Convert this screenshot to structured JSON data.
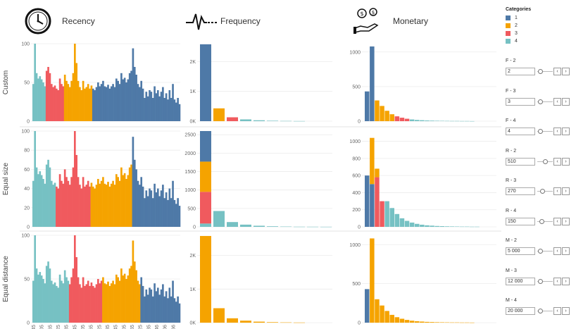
{
  "header": {
    "recency_title": "Recency",
    "frequency_title": "Frequency",
    "monetary_title": "Monetary",
    "recency_icon": "clock-icon",
    "frequency_icon": "heartbeat-icon",
    "monetary_icon": "money-hand-icon"
  },
  "rows": [
    "Custom",
    "Equal size",
    "Equal distance"
  ],
  "legend": {
    "title": "Categories",
    "items": [
      {
        "label": "1",
        "color": "#4e79a7"
      },
      {
        "label": "2",
        "color": "#f5a300"
      },
      {
        "label": "3",
        "color": "#f05a5e"
      },
      {
        "label": "4",
        "color": "#76c1c3"
      }
    ]
  },
  "parameters": [
    {
      "label": "F - 2",
      "value": "2",
      "slider": 0.05
    },
    {
      "label": "F - 3",
      "value": "3",
      "slider": 0.05
    },
    {
      "label": "F - 4",
      "value": "4",
      "slider": 0.05
    },
    {
      "label": "R - 2",
      "value": "510",
      "slider": 0.45
    },
    {
      "label": "R - 3",
      "value": "270",
      "slider": 0.25
    },
    {
      "label": "R - 4",
      "value": "150",
      "slider": 0.15
    },
    {
      "label": "M - 2",
      "value": "5 000",
      "slider": 0.05
    },
    {
      "label": "M - 3",
      "value": "12 000",
      "slider": 0.05
    },
    {
      "label": "M - 4",
      "value": "20 000",
      "slider": 0.05
    }
  ],
  "chart_data": [
    {
      "type": "bar",
      "name": "recency-custom",
      "ylim": [
        0,
        100
      ],
      "yticks": [
        {
          "v": 0,
          "l": "0"
        },
        {
          "v": 50,
          "l": "50"
        },
        {
          "v": 100,
          "l": "100"
        }
      ],
      "values": [
        48,
        100,
        62,
        55,
        58,
        54,
        50,
        45,
        65,
        70,
        62,
        48,
        44,
        46,
        42,
        40,
        55,
        48,
        45,
        60,
        52,
        48,
        44,
        52,
        62,
        100,
        75,
        52,
        44,
        40,
        52,
        42,
        44,
        48,
        42,
        46,
        42,
        40,
        44,
        50,
        45,
        48,
        52,
        45,
        44,
        47,
        42,
        45,
        48,
        44,
        55,
        52,
        48,
        62,
        54,
        56,
        50,
        54,
        62,
        65,
        94,
        70,
        60,
        48,
        44,
        52,
        42,
        30,
        38,
        32,
        40,
        38,
        30,
        45,
        36,
        40,
        32,
        38,
        44,
        30,
        36,
        28,
        40,
        30,
        48,
        28,
        24,
        30,
        22
      ],
      "cats": [
        4,
        4,
        4,
        4,
        4,
        4,
        4,
        4,
        3,
        3,
        3,
        3,
        3,
        3,
        3,
        3,
        3,
        3,
        3,
        2,
        2,
        2,
        2,
        2,
        2,
        2,
        2,
        2,
        2,
        2,
        2,
        2,
        2,
        2,
        2,
        2,
        1,
        1,
        1,
        1,
        1,
        1,
        1,
        1,
        1,
        1,
        1,
        1,
        1,
        1,
        1,
        1,
        1,
        1,
        1,
        1,
        1,
        1,
        1,
        1,
        1,
        1,
        1,
        1,
        1,
        1,
        1,
        1,
        1,
        1,
        1,
        1,
        1,
        1,
        1,
        1,
        1,
        1,
        1,
        1,
        1,
        1,
        1,
        1,
        1,
        1,
        1,
        1,
        1
      ]
    },
    {
      "type": "bar",
      "name": "recency-equal-size",
      "ylim": [
        0,
        100
      ],
      "yticks": [
        {
          "v": 0,
          "l": "0"
        },
        {
          "v": 20,
          "l": "20"
        },
        {
          "v": 40,
          "l": "40"
        },
        {
          "v": 60,
          "l": "60"
        },
        {
          "v": 80,
          "l": "80"
        },
        {
          "v": 100,
          "l": "100"
        }
      ],
      "values": [
        48,
        100,
        62,
        55,
        58,
        54,
        50,
        45,
        65,
        70,
        62,
        48,
        44,
        46,
        42,
        40,
        55,
        48,
        45,
        60,
        52,
        48,
        44,
        52,
        62,
        100,
        75,
        52,
        44,
        40,
        52,
        42,
        44,
        48,
        42,
        46,
        42,
        40,
        44,
        50,
        45,
        48,
        52,
        45,
        44,
        47,
        42,
        45,
        48,
        44,
        55,
        52,
        48,
        62,
        54,
        56,
        50,
        54,
        62,
        65,
        94,
        70,
        60,
        48,
        44,
        52,
        42,
        30,
        38,
        32,
        40,
        38,
        30,
        45,
        36,
        40,
        32,
        38,
        44,
        30,
        36,
        28,
        40,
        30,
        48,
        28,
        24,
        30,
        22
      ],
      "cats": [
        4,
        4,
        4,
        4,
        4,
        4,
        4,
        4,
        4,
        4,
        4,
        4,
        4,
        4,
        3,
        3,
        3,
        3,
        3,
        3,
        3,
        3,
        3,
        3,
        3,
        3,
        3,
        3,
        3,
        3,
        3,
        3,
        3,
        3,
        3,
        2,
        2,
        2,
        2,
        2,
        2,
        2,
        2,
        2,
        2,
        2,
        2,
        2,
        2,
        2,
        2,
        2,
        2,
        2,
        2,
        2,
        2,
        2,
        2,
        2,
        1,
        1,
        1,
        1,
        1,
        1,
        1,
        1,
        1,
        1,
        1,
        1,
        1,
        1,
        1,
        1,
        1,
        1,
        1,
        1,
        1,
        1,
        1,
        1,
        1,
        1,
        1,
        1,
        1
      ]
    },
    {
      "type": "bar",
      "name": "recency-equal-distance",
      "ylim": [
        0,
        100
      ],
      "yticks": [
        {
          "v": 0,
          "l": "0"
        },
        {
          "v": 50,
          "l": "50"
        },
        {
          "v": 100,
          "l": "100"
        }
      ],
      "xticks": [
        "45",
        "105",
        "165",
        "225",
        "285",
        "345",
        "405",
        "465",
        "525",
        "585",
        "645",
        "705",
        "765",
        "825",
        "885",
        "946",
        "1006",
        "1066"
      ],
      "values": [
        48,
        100,
        62,
        55,
        58,
        54,
        50,
        45,
        65,
        70,
        62,
        48,
        44,
        46,
        42,
        40,
        55,
        48,
        45,
        60,
        52,
        48,
        44,
        52,
        62,
        100,
        75,
        52,
        44,
        40,
        52,
        42,
        44,
        48,
        42,
        46,
        42,
        40,
        44,
        50,
        45,
        48,
        52,
        45,
        44,
        47,
        42,
        45,
        48,
        44,
        55,
        52,
        48,
        62,
        54,
        56,
        50,
        54,
        62,
        65,
        94,
        70,
        60,
        48,
        44,
        52,
        42,
        30,
        38,
        32,
        40,
        38,
        30,
        45,
        36,
        40,
        32,
        38,
        44,
        30,
        36,
        28,
        40,
        30,
        48,
        28,
        24,
        30,
        22
      ],
      "cats": [
        4,
        4,
        4,
        4,
        4,
        4,
        4,
        4,
        4,
        4,
        4,
        4,
        4,
        4,
        4,
        4,
        4,
        4,
        4,
        4,
        4,
        4,
        3,
        3,
        3,
        3,
        3,
        3,
        3,
        3,
        3,
        3,
        3,
        3,
        3,
        3,
        3,
        3,
        3,
        3,
        3,
        3,
        2,
        2,
        2,
        2,
        2,
        2,
        2,
        2,
        2,
        2,
        2,
        2,
        2,
        2,
        2,
        2,
        2,
        2,
        2,
        2,
        2,
        2,
        2,
        1,
        1,
        1,
        1,
        1,
        1,
        1,
        1,
        1,
        1,
        1,
        1,
        1,
        1,
        1,
        1,
        1,
        1,
        1,
        1,
        1,
        1,
        1,
        1
      ]
    },
    {
      "type": "bar",
      "name": "frequency-custom",
      "ylim": [
        0,
        2600
      ],
      "yticks": [
        {
          "v": 0,
          "l": "0K"
        },
        {
          "v": 1000,
          "l": "1K"
        },
        {
          "v": 2000,
          "l": "2K"
        }
      ],
      "stacks": [
        [
          {
            "c": 1,
            "v": 2580
          }
        ],
        [
          {
            "c": 2,
            "v": 430
          }
        ],
        [
          {
            "c": 3,
            "v": 130
          }
        ],
        [
          {
            "c": 4,
            "v": 60
          }
        ],
        [
          {
            "c": 4,
            "v": 30
          }
        ],
        [
          {
            "c": 4,
            "v": 15
          }
        ],
        [
          {
            "c": 4,
            "v": 8
          }
        ],
        [
          {
            "c": 4,
            "v": 4
          }
        ]
      ]
    },
    {
      "type": "bar",
      "name": "frequency-equal-size",
      "ylim": [
        0,
        2600
      ],
      "yticks": [
        {
          "v": 0,
          "l": "0"
        },
        {
          "v": 500,
          "l": "500"
        },
        {
          "v": 1000,
          "l": "1000"
        },
        {
          "v": 1500,
          "l": "1500"
        },
        {
          "v": 2000,
          "l": "2000"
        },
        {
          "v": 2500,
          "l": "2500"
        }
      ],
      "stacks": [
        [
          {
            "c": 4,
            "v": 90
          },
          {
            "c": 3,
            "v": 860
          },
          {
            "c": 2,
            "v": 820
          },
          {
            "c": 1,
            "v": 830
          }
        ],
        [
          {
            "c": 4,
            "v": 430
          }
        ],
        [
          {
            "c": 4,
            "v": 130
          }
        ],
        [
          {
            "c": 4,
            "v": 60
          }
        ],
        [
          {
            "c": 4,
            "v": 30
          }
        ],
        [
          {
            "c": 4,
            "v": 15
          }
        ],
        [
          {
            "c": 4,
            "v": 8
          }
        ],
        [
          {
            "c": 4,
            "v": 4
          }
        ],
        [
          {
            "c": 4,
            "v": 3
          }
        ],
        [
          {
            "c": 4,
            "v": 2
          }
        ]
      ]
    },
    {
      "type": "bar",
      "name": "frequency-equal-distance",
      "ylim": [
        0,
        2600
      ],
      "yticks": [
        {
          "v": 0,
          "l": "0K"
        },
        {
          "v": 1000,
          "l": "1K"
        },
        {
          "v": 2000,
          "l": "2K"
        }
      ],
      "stacks": [
        [
          {
            "c": 2,
            "v": 2580
          }
        ],
        [
          {
            "c": 2,
            "v": 430
          }
        ],
        [
          {
            "c": 2,
            "v": 130
          }
        ],
        [
          {
            "c": 2,
            "v": 60
          }
        ],
        [
          {
            "c": 2,
            "v": 30
          }
        ],
        [
          {
            "c": 2,
            "v": 15
          }
        ],
        [
          {
            "c": 2,
            "v": 8
          }
        ],
        [
          {
            "c": 2,
            "v": 4
          }
        ]
      ]
    },
    {
      "type": "bar",
      "name": "monetary-custom",
      "ylim": [
        0,
        1120
      ],
      "yticks": [
        {
          "v": 0,
          "l": "0"
        },
        {
          "v": 500,
          "l": "500"
        },
        {
          "v": 1000,
          "l": "1000"
        }
      ],
      "stacks": [
        [
          {
            "c": 1,
            "v": 430
          }
        ],
        [
          {
            "c": 1,
            "v": 1080
          }
        ],
        [
          {
            "c": 2,
            "v": 300
          }
        ],
        [
          {
            "c": 2,
            "v": 220
          }
        ],
        [
          {
            "c": 2,
            "v": 150
          }
        ],
        [
          {
            "c": 2,
            "v": 100
          }
        ],
        [
          {
            "c": 3,
            "v": 70
          }
        ],
        [
          {
            "c": 3,
            "v": 50
          }
        ],
        [
          {
            "c": 3,
            "v": 35
          }
        ],
        [
          {
            "c": 4,
            "v": 25
          }
        ],
        [
          {
            "c": 4,
            "v": 18
          }
        ],
        [
          {
            "c": 4,
            "v": 14
          }
        ],
        [
          {
            "c": 4,
            "v": 10
          }
        ],
        [
          {
            "c": 4,
            "v": 8
          }
        ],
        [
          {
            "c": 4,
            "v": 6
          }
        ],
        [
          {
            "c": 4,
            "v": 5
          }
        ],
        [
          {
            "c": 4,
            "v": 4
          }
        ],
        [
          {
            "c": 4,
            "v": 3
          }
        ],
        [
          {
            "c": 4,
            "v": 3
          }
        ],
        [
          {
            "c": 4,
            "v": 2
          }
        ],
        [
          {
            "c": 4,
            "v": 2
          }
        ],
        [
          {
            "c": 4,
            "v": 1
          }
        ]
      ]
    },
    {
      "type": "bar",
      "name": "monetary-equal-size",
      "ylim": [
        0,
        1120
      ],
      "yticks": [
        {
          "v": 0,
          "l": "0"
        },
        {
          "v": 200,
          "l": "200"
        },
        {
          "v": 400,
          "l": "400"
        },
        {
          "v": 600,
          "l": "600"
        },
        {
          "v": 800,
          "l": "800"
        },
        {
          "v": 1000,
          "l": "1000"
        }
      ],
      "stacks": [
        [
          {
            "c": 1,
            "v": 600
          }
        ],
        [
          {
            "c": 1,
            "v": 500
          },
          {
            "c": 2,
            "v": 540
          }
        ],
        [
          {
            "c": 3,
            "v": 580
          },
          {
            "c": 2,
            "v": 100
          }
        ],
        [
          {
            "c": 3,
            "v": 300
          }
        ],
        [
          {
            "c": 4,
            "v": 300
          }
        ],
        [
          {
            "c": 4,
            "v": 220
          }
        ],
        [
          {
            "c": 4,
            "v": 150
          }
        ],
        [
          {
            "c": 4,
            "v": 100
          }
        ],
        [
          {
            "c": 4,
            "v": 70
          }
        ],
        [
          {
            "c": 4,
            "v": 50
          }
        ],
        [
          {
            "c": 4,
            "v": 35
          }
        ],
        [
          {
            "c": 4,
            "v": 25
          }
        ],
        [
          {
            "c": 4,
            "v": 18
          }
        ],
        [
          {
            "c": 4,
            "v": 14
          }
        ],
        [
          {
            "c": 4,
            "v": 10
          }
        ],
        [
          {
            "c": 4,
            "v": 8
          }
        ],
        [
          {
            "c": 4,
            "v": 6
          }
        ],
        [
          {
            "c": 4,
            "v": 5
          }
        ],
        [
          {
            "c": 4,
            "v": 4
          }
        ],
        [
          {
            "c": 4,
            "v": 3
          }
        ],
        [
          {
            "c": 4,
            "v": 3
          }
        ],
        [
          {
            "c": 4,
            "v": 2
          }
        ],
        [
          {
            "c": 4,
            "v": 2
          }
        ]
      ]
    },
    {
      "type": "bar",
      "name": "monetary-equal-distance",
      "ylim": [
        0,
        1120
      ],
      "yticks": [
        {
          "v": 0,
          "l": "0"
        },
        {
          "v": 500,
          "l": "500"
        },
        {
          "v": 1000,
          "l": "1000"
        }
      ],
      "stacks": [
        [
          {
            "c": 1,
            "v": 430
          }
        ],
        [
          {
            "c": 2,
            "v": 1080
          }
        ],
        [
          {
            "c": 2,
            "v": 300
          }
        ],
        [
          {
            "c": 2,
            "v": 220
          }
        ],
        [
          {
            "c": 2,
            "v": 150
          }
        ],
        [
          {
            "c": 2,
            "v": 100
          }
        ],
        [
          {
            "c": 2,
            "v": 70
          }
        ],
        [
          {
            "c": 2,
            "v": 50
          }
        ],
        [
          {
            "c": 2,
            "v": 35
          }
        ],
        [
          {
            "c": 2,
            "v": 25
          }
        ],
        [
          {
            "c": 2,
            "v": 18
          }
        ],
        [
          {
            "c": 2,
            "v": 14
          }
        ],
        [
          {
            "c": 2,
            "v": 10
          }
        ],
        [
          {
            "c": 2,
            "v": 8
          }
        ],
        [
          {
            "c": 2,
            "v": 6
          }
        ],
        [
          {
            "c": 2,
            "v": 5
          }
        ],
        [
          {
            "c": 2,
            "v": 4
          }
        ],
        [
          {
            "c": 2,
            "v": 3
          }
        ],
        [
          {
            "c": 2,
            "v": 3
          }
        ],
        [
          {
            "c": 2,
            "v": 2
          }
        ],
        [
          {
            "c": 2,
            "v": 2
          }
        ],
        [
          {
            "c": 2,
            "v": 1
          }
        ]
      ]
    }
  ]
}
